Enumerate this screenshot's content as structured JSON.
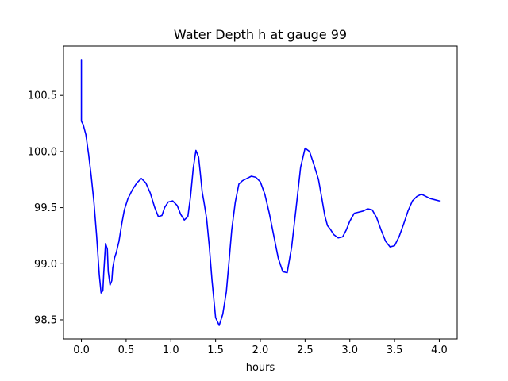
{
  "chart_data": {
    "type": "line",
    "title": "Water Depth h at gauge 99",
    "xlabel": "hours",
    "ylabel": "",
    "xlim": [
      -0.2,
      4.2
    ],
    "ylim": [
      98.33,
      100.94
    ],
    "x_ticks": [
      0.0,
      0.5,
      1.0,
      1.5,
      2.0,
      2.5,
      3.0,
      3.5,
      4.0
    ],
    "x_tick_labels": [
      "0.0",
      "0.5",
      "1.0",
      "1.5",
      "2.0",
      "2.5",
      "3.0",
      "3.5",
      "4.0"
    ],
    "y_ticks": [
      98.5,
      99.0,
      99.5,
      100.0,
      100.5
    ],
    "y_tick_labels": [
      "98.5",
      "99.0",
      "99.5",
      "100.0",
      "100.5"
    ],
    "grid": false,
    "legend": "none",
    "series": [
      {
        "color": "#0000ff",
        "x": [
          0.0,
          0.0,
          0.0,
          0.02,
          0.05,
          0.08,
          0.11,
          0.14,
          0.17,
          0.2,
          0.22,
          0.24,
          0.25,
          0.27,
          0.29,
          0.3,
          0.32,
          0.34,
          0.35,
          0.37,
          0.39,
          0.42,
          0.45,
          0.48,
          0.52,
          0.57,
          0.62,
          0.67,
          0.72,
          0.77,
          0.82,
          0.86,
          0.9,
          0.93,
          0.97,
          1.02,
          1.07,
          1.11,
          1.15,
          1.19,
          1.22,
          1.25,
          1.28,
          1.31,
          1.33,
          1.35,
          1.37,
          1.4,
          1.43,
          1.46,
          1.5,
          1.54,
          1.58,
          1.62,
          1.65,
          1.68,
          1.72,
          1.76,
          1.8,
          1.85,
          1.9,
          1.95,
          2.0,
          2.05,
          2.1,
          2.15,
          2.2,
          2.25,
          2.3,
          2.35,
          2.4,
          2.45,
          2.5,
          2.55,
          2.6,
          2.65,
          2.69,
          2.72,
          2.75,
          2.78,
          2.82,
          2.87,
          2.92,
          2.96,
          3.0,
          3.05,
          3.1,
          3.15,
          3.2,
          3.25,
          3.3,
          3.35,
          3.4,
          3.45,
          3.5,
          3.55,
          3.6,
          3.65,
          3.7,
          3.75,
          3.8,
          3.85,
          3.9,
          3.95,
          4.0
        ],
        "y": [
          100.82,
          100.27,
          100.27,
          100.24,
          100.15,
          99.98,
          99.78,
          99.55,
          99.25,
          98.9,
          98.74,
          98.76,
          98.92,
          99.18,
          99.13,
          98.93,
          98.81,
          98.85,
          98.96,
          99.05,
          99.1,
          99.2,
          99.35,
          99.48,
          99.58,
          99.66,
          99.72,
          99.76,
          99.72,
          99.63,
          99.5,
          99.42,
          99.43,
          99.5,
          99.55,
          99.56,
          99.52,
          99.44,
          99.39,
          99.42,
          99.6,
          99.85,
          100.01,
          99.95,
          99.8,
          99.64,
          99.55,
          99.4,
          99.15,
          98.85,
          98.52,
          98.45,
          98.55,
          98.75,
          99.02,
          99.3,
          99.55,
          99.71,
          99.74,
          99.76,
          99.78,
          99.77,
          99.73,
          99.62,
          99.45,
          99.25,
          99.05,
          98.93,
          98.92,
          99.15,
          99.5,
          99.86,
          100.03,
          100.0,
          99.88,
          99.75,
          99.57,
          99.43,
          99.34,
          99.31,
          99.26,
          99.23,
          99.24,
          99.3,
          99.38,
          99.45,
          99.46,
          99.47,
          99.49,
          99.48,
          99.41,
          99.3,
          99.2,
          99.15,
          99.16,
          99.24,
          99.35,
          99.47,
          99.56,
          99.6,
          99.62,
          99.6,
          99.58,
          99.57,
          99.56
        ]
      }
    ]
  }
}
